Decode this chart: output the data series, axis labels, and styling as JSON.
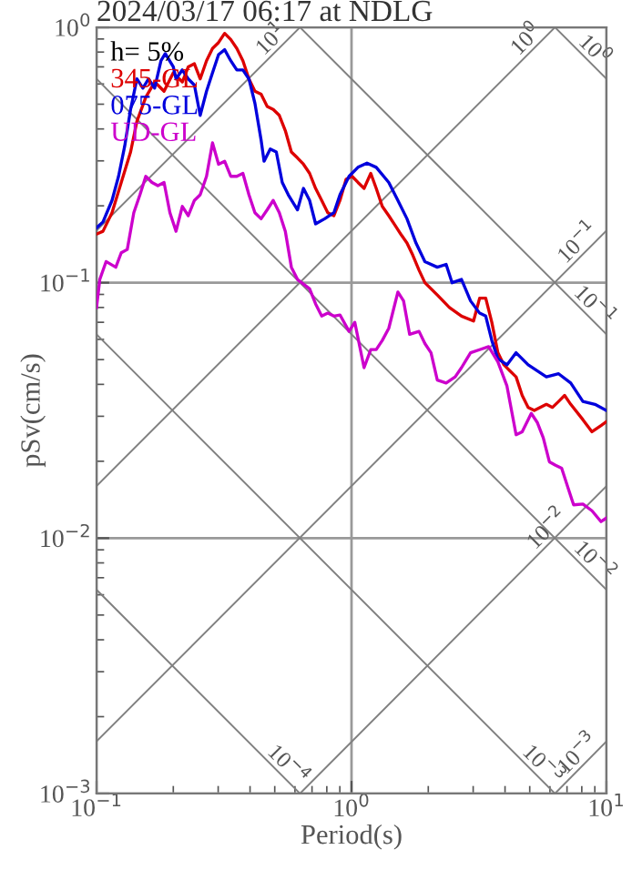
{
  "chart_data": {
    "type": "line",
    "title": "2024/03/17 06:17 at NDLG",
    "xlabel": "Period(s)",
    "ylabel": "pSv(cm/s)",
    "legend_title": "h= 5%",
    "legend": "top left",
    "log": "xy",
    "grid": true,
    "line_style": "solid",
    "marker": "none",
    "xlim": [
      0.1,
      10
    ],
    "ylim": [
      0.001,
      1
    ],
    "xticks": [
      {
        "value": 0.1,
        "label": "10$^{−1}$"
      },
      {
        "value": 1,
        "label": "10$^{0}$"
      },
      {
        "value": 10,
        "label": "10$^{1}$"
      }
    ],
    "yticks": [
      {
        "value": 0.001,
        "label": "10$^{−3}$"
      },
      {
        "value": 0.01,
        "label": "10$^{−2}$"
      },
      {
        "value": 0.1,
        "label": "10$^{−1}$"
      },
      {
        "value": 1,
        "label": "10$^{0}$"
      }
    ],
    "series": [
      {
        "name": "345-GL",
        "color": "#dd0000",
        "x": [
          0.1,
          0.106,
          0.115,
          0.125,
          0.136,
          0.144,
          0.156,
          0.169,
          0.184,
          0.2,
          0.217,
          0.229,
          0.242,
          0.255,
          0.27,
          0.285,
          0.301,
          0.318,
          0.336,
          0.355,
          0.375,
          0.396,
          0.418,
          0.442,
          0.467,
          0.493,
          0.521,
          0.55,
          0.581,
          0.614,
          0.648,
          0.685,
          0.723,
          0.764,
          0.807,
          0.853,
          0.901,
          0.952,
          1.005,
          1.06,
          1.12,
          1.19,
          1.25,
          1.32,
          1.4,
          1.48,
          1.56,
          1.65,
          1.74,
          1.84,
          1.94,
          2.17,
          2.42,
          2.7,
          3.01,
          3.18,
          3.36,
          3.55,
          3.75,
          3.96,
          4.18,
          4.42,
          4.67,
          4.93,
          5.21,
          5.81,
          6.14,
          6.49,
          6.85,
          7.24,
          8.08,
          8.77,
          9.52,
          10
        ],
        "values": [
          0.155,
          0.159,
          0.188,
          0.247,
          0.325,
          0.428,
          0.532,
          0.611,
          0.562,
          0.663,
          0.611,
          0.7,
          0.72,
          0.628,
          0.74,
          0.826,
          0.872,
          0.947,
          0.896,
          0.826,
          0.74,
          0.628,
          0.562,
          0.547,
          0.49,
          0.477,
          0.452,
          0.394,
          0.325,
          0.308,
          0.291,
          0.268,
          0.234,
          0.21,
          0.188,
          0.183,
          0.21,
          0.254,
          0.261,
          0.247,
          0.234,
          0.268,
          0.234,
          0.199,
          0.183,
          0.168,
          0.155,
          0.143,
          0.128,
          0.112,
          0.1,
          0.0895,
          0.08,
          0.074,
          0.0708,
          0.087,
          0.087,
          0.07,
          0.0532,
          0.0477,
          0.0452,
          0.0428,
          0.0362,
          0.0325,
          0.0316,
          0.0334,
          0.0325,
          0.0343,
          0.0362,
          0.0334,
          0.0291,
          0.0261,
          0.0276,
          0.0286
        ]
      },
      {
        "name": "075-GL",
        "color": "#0000dd",
        "x": [
          0.1,
          0.106,
          0.115,
          0.122,
          0.129,
          0.136,
          0.144,
          0.152,
          0.16,
          0.169,
          0.179,
          0.186,
          0.2,
          0.205,
          0.217,
          0.229,
          0.242,
          0.255,
          0.27,
          0.285,
          0.301,
          0.318,
          0.336,
          0.355,
          0.375,
          0.396,
          0.418,
          0.442,
          0.454,
          0.48,
          0.507,
          0.535,
          0.565,
          0.614,
          0.648,
          0.685,
          0.723,
          0.785,
          0.853,
          0.901,
          0.978,
          1.06,
          1.15,
          1.25,
          1.4,
          1.52,
          1.65,
          1.79,
          1.94,
          2.17,
          2.35,
          2.48,
          2.7,
          2.93,
          3.18,
          3.36,
          3.55,
          3.75,
          4.07,
          4.42,
          4.93,
          5.81,
          6.49,
          7.24,
          8.08,
          9.01,
          10
        ],
        "values": [
          0.164,
          0.173,
          0.21,
          0.261,
          0.343,
          0.477,
          0.628,
          0.578,
          0.628,
          0.578,
          0.74,
          0.789,
          0.7,
          0.628,
          0.681,
          0.628,
          0.594,
          0.452,
          0.562,
          0.663,
          0.782,
          0.817,
          0.74,
          0.681,
          0.681,
          0.628,
          0.504,
          0.362,
          0.299,
          0.334,
          0.325,
          0.247,
          0.221,
          0.193,
          0.234,
          0.21,
          0.17,
          0.178,
          0.188,
          0.221,
          0.261,
          0.283,
          0.294,
          0.283,
          0.247,
          0.21,
          0.178,
          0.143,
          0.121,
          0.115,
          0.118,
          0.1,
          0.103,
          0.0849,
          0.076,
          0.074,
          0.0594,
          0.0504,
          0.0477,
          0.0532,
          0.0477,
          0.0428,
          0.044,
          0.0405,
          0.0343,
          0.0334,
          0.0316
        ]
      },
      {
        "name": "UD-GL",
        "color": "#cc00cc",
        "x": [
          0.1,
          0.103,
          0.109,
          0.119,
          0.125,
          0.132,
          0.14,
          0.148,
          0.156,
          0.165,
          0.174,
          0.184,
          0.194,
          0.205,
          0.217,
          0.229,
          0.242,
          0.255,
          0.27,
          0.285,
          0.301,
          0.318,
          0.336,
          0.355,
          0.375,
          0.396,
          0.418,
          0.442,
          0.467,
          0.493,
          0.521,
          0.55,
          0.581,
          0.614,
          0.685,
          0.723,
          0.764,
          0.807,
          0.853,
          0.901,
          0.978,
          1.03,
          1.12,
          1.19,
          1.25,
          1.32,
          1.4,
          1.52,
          1.6,
          1.69,
          1.84,
          1.94,
          2.05,
          2.17,
          2.35,
          2.55,
          2.7,
          2.93,
          3.18,
          3.45,
          3.75,
          4.07,
          4.42,
          4.67,
          5.07,
          5.36,
          5.65,
          5.97,
          6.31,
          6.67,
          7.04,
          7.43,
          8.08,
          8.77,
          9.52,
          10
        ],
        "values": [
          0.08,
          0.103,
          0.121,
          0.115,
          0.131,
          0.135,
          0.188,
          0.221,
          0.261,
          0.247,
          0.24,
          0.247,
          0.188,
          0.159,
          0.199,
          0.183,
          0.21,
          0.221,
          0.261,
          0.353,
          0.291,
          0.299,
          0.261,
          0.261,
          0.268,
          0.221,
          0.188,
          0.178,
          0.193,
          0.21,
          0.188,
          0.159,
          0.115,
          0.103,
          0.0946,
          0.0826,
          0.074,
          0.076,
          0.074,
          0.0748,
          0.0645,
          0.07,
          0.0465,
          0.0547,
          0.0547,
          0.0594,
          0.0663,
          0.092,
          0.0849,
          0.0628,
          0.0645,
          0.0578,
          0.0532,
          0.0416,
          0.0405,
          0.0428,
          0.0465,
          0.0532,
          0.0547,
          0.0562,
          0.049,
          0.0394,
          0.0254,
          0.0261,
          0.0308,
          0.0283,
          0.0247,
          0.0199,
          0.0193,
          0.0188,
          0.0159,
          0.0135,
          0.0136,
          0.0128,
          0.0116,
          0.012
        ]
      },
      {
        "name": "10$^{1}$",
        "color": "#808080",
        "x": [
          0.1,
          0.628
        ],
        "values": [
          0.16,
          1
        ]
      },
      {
        "name": "10$^{0}$",
        "color": "#808080",
        "x": [
          0.1,
          6.28
        ],
        "values": [
          0.016,
          1
        ]
      },
      {
        "name": "10$^{−1}$",
        "color": "#808080",
        "x": [
          0.1,
          10
        ],
        "values": [
          0.0016,
          0.16
        ]
      },
      {
        "name": "10$^{−2}$",
        "color": "#808080",
        "x": [
          0.628,
          10
        ],
        "values": [
          0.001,
          0.016
        ]
      },
      {
        "name": "10$^{−3}$",
        "color": "#808080",
        "x": [
          6.28,
          10
        ],
        "values": [
          0.001,
          0.0016
        ]
      },
      {
        "name": "10$^{0}$",
        "color": "#808080",
        "x": [
          6.28,
          10
        ],
        "values": [
          1,
          0.628
        ]
      },
      {
        "name": "10$^{−1}$",
        "color": "#808080",
        "x": [
          0.628,
          10
        ],
        "values": [
          1,
          0.0628
        ]
      },
      {
        "name": "10$^{−2}$",
        "color": "#808080",
        "x": [
          0.1,
          10
        ],
        "values": [
          0.628,
          0.00628
        ]
      },
      {
        "name": "10$^{−3}$",
        "color": "#808080",
        "x": [
          0.1,
          6.28
        ],
        "values": [
          0.0628,
          0.001
        ]
      },
      {
        "name": "10$^{−4}$",
        "color": "#808080",
        "x": [
          0.1,
          0.628
        ],
        "values": [
          0.00628,
          0.001
        ]
      }
    ]
  }
}
